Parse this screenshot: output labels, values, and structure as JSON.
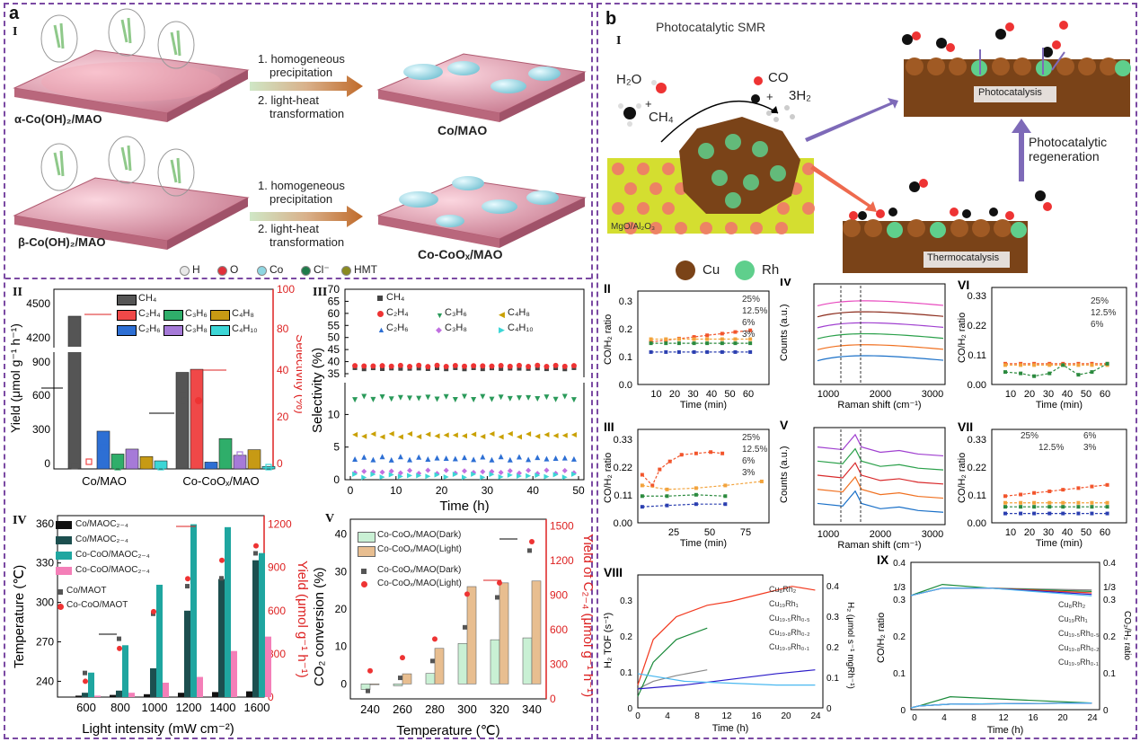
{
  "panel_a": {
    "letter": "a",
    "sub_I": "I",
    "arrow_steps": [
      "1. homogeneous",
      "precipitation",
      "2. light-heat",
      "transformation"
    ],
    "labels": {
      "alpha": "α-Co(OH)₂/MAO",
      "beta": "β-Co(OH)₂/MAO",
      "co_mao": "Co/MAO",
      "co_coox": "Co-CoOₓ/MAO"
    },
    "legend": [
      {
        "label": "H",
        "color": "#e8e8e8"
      },
      {
        "label": "O",
        "color": "#e0303a"
      },
      {
        "label": "Co",
        "color": "#8fd6e2"
      },
      {
        "label": "Cl⁻",
        "color": "#1f7a4a"
      },
      {
        "label": "HMT",
        "color": "#8a8a20"
      }
    ]
  },
  "panel_b": {
    "letter": "b",
    "sub_I": "I",
    "title": "Photocatalytic SMR",
    "reaction": {
      "h2o": "H₂O",
      "ch4": "CH₄",
      "co": "CO",
      "h2": "3H₂",
      "plus": "+"
    },
    "support": "MgO/Al₂O₃",
    "photocatalysis": "Photocatalysis",
    "thermocatalysis": "Thermocatalysis",
    "regeneration": [
      "Photocatalytic",
      "regeneration"
    ],
    "legend": [
      {
        "label": "Cu",
        "color": "#7a4318"
      },
      {
        "label": "Rh",
        "color": "#5fcf8c"
      }
    ]
  },
  "chart_data": [
    {
      "id": "a-II",
      "type": "bar",
      "label": "II",
      "categories": [
        "Co/MAO",
        "Co-CoOx/MAO"
      ],
      "series": [
        {
          "name": "CH₄",
          "color": "#555555",
          "values": [
            4410,
            780
          ]
        },
        {
          "name": "C₂H₄",
          "color": "#f04848",
          "values": [
            null,
            805
          ]
        },
        {
          "name": "C₂H₆",
          "color": "#2d6fd4",
          "values": [
            305,
            55
          ]
        },
        {
          "name": "C₃H₆",
          "color": "#2fae6a",
          "values": [
            120,
            245
          ]
        },
        {
          "name": "C₃H₈",
          "color": "#a67ad8",
          "values": [
            160,
            110
          ]
        },
        {
          "name": "C₄H₈",
          "color": "#c79a14",
          "values": [
            100,
            155
          ]
        },
        {
          "name": "C₄H₁₀",
          "color": "#3cd6d6",
          "values": [
            65,
            20
          ]
        }
      ],
      "ylabel": "Yield (μmol g⁻¹ h⁻¹)",
      "y2label": "Selectivity (%)",
      "yticks": [
        "0",
        "300",
        "600",
        "900",
        "4200",
        "4500"
      ],
      "y2ticks": [
        "0",
        "20",
        "40",
        "80",
        "100"
      ]
    },
    {
      "id": "a-III",
      "type": "scatter",
      "label": "III",
      "xlabel": "Time (h)",
      "ylabel": "Selectivity (%)",
      "xticks": [
        "0",
        "10",
        "20",
        "30",
        "40",
        "50"
      ],
      "yticks": [
        "0",
        "5",
        "10",
        "35",
        "40",
        "45",
        "50",
        "55",
        "60",
        "65",
        "70"
      ],
      "xlim": [
        0,
        50
      ],
      "series": [
        {
          "name": "CH₄",
          "value": 37.2
        },
        {
          "name": "C₂H₄",
          "value": 38.2
        },
        {
          "name": "C₂H₆",
          "value": 3.3
        },
        {
          "name": "C₃H₆",
          "value": 12.5
        },
        {
          "name": "C₃H₈",
          "value": 1.2
        },
        {
          "name": "C₄H₈",
          "value": 6.8
        },
        {
          "name": "C₄H₁₀",
          "value": 0.6
        }
      ]
    },
    {
      "id": "a-IV",
      "type": "bar",
      "label": "IV",
      "xlabel": "Light intensity (mW cm⁻²)",
      "ylabel": "Temperature (℃)",
      "y2label": "Yield (μmol g⁻¹ h⁻¹)",
      "categories": [
        "600",
        "800",
        "1000",
        "1200",
        "1400",
        "1600"
      ],
      "yticks": [
        "240",
        "270",
        "300",
        "330",
        "360"
      ],
      "y2ticks": [
        "0",
        "300",
        "600",
        "900",
        "1200"
      ],
      "series": [
        {
          "name": "Co/MAOC₂₋₄",
          "values": [
            10,
            15,
            20,
            30,
            35,
            40
          ]
        },
        {
          "name": "Co/MAOC₂₋₄",
          "values": [
            30,
            45,
            200,
            600,
            820,
            950
          ]
        },
        {
          "name": "Co-CoO/MAOC₂₋₄",
          "values": [
            170,
            360,
            780,
            1200,
            1180,
            1000
          ]
        },
        {
          "name": "Co-CoO/MAOC₂₋₄",
          "values": [
            10,
            30,
            100,
            140,
            320,
            420
          ]
        }
      ],
      "temps": {
        "Co/MAO_T": [
          246,
          272,
          291,
          312,
          318,
          337
        ],
        "Co-CoO/MAO_T": [
          240,
          265,
          293,
          318,
          332,
          343
        ]
      }
    },
    {
      "id": "a-V",
      "type": "bar",
      "label": "V",
      "xlabel": "Temperature (℃)",
      "ylabel": "CO₂ conversion (%)",
      "y2label": "Yield of C₂₋₄ (μmol g⁻¹ h⁻¹)",
      "categories": [
        "240",
        "260",
        "280",
        "300",
        "320",
        "340"
      ],
      "yticks": [
        "0",
        "10",
        "20",
        "30",
        "40"
      ],
      "y2ticks": [
        "0",
        "300",
        "600",
        "900",
        "1200",
        "1500"
      ],
      "series": [
        {
          "name": "Co-CoOₓ/MAO(Dark)",
          "values": [
            -1.5,
            -0.5,
            2.8,
            10.8,
            11.8,
            12.3
          ]
        },
        {
          "name": "Co-CoOₓ/MAO(Light)",
          "values": [
            -0.2,
            2.7,
            9.5,
            26,
            27,
            27.5
          ]
        }
      ]
    },
    {
      "id": "b-II",
      "type": "line",
      "label": "II",
      "xlabel": "Time (min)",
      "ylabel": "CO/H₂ ratio",
      "legend": [
        "25%",
        "12.5%",
        "6%",
        "3%"
      ]
    },
    {
      "id": "b-III",
      "type": "line",
      "label": "III",
      "xlabel": "Time (min)",
      "ylabel": "CO/H₂ ratio",
      "legend": [
        "25%",
        "12.5%",
        "6%",
        "3%"
      ]
    },
    {
      "id": "b-IV",
      "type": "line",
      "label": "IV",
      "xlabel": "Raman shift (cm⁻¹)",
      "ylabel": "Counts (a.u.)"
    },
    {
      "id": "b-V",
      "type": "line",
      "label": "V",
      "xlabel": "Raman shift (cm⁻¹)",
      "ylabel": "Counts (a.u.)"
    },
    {
      "id": "b-VI",
      "type": "line",
      "label": "VI",
      "xlabel": "Time (min)",
      "ylabel": "CO/H₂ ratio",
      "legend": [
        "25%",
        "12.5%",
        "6%"
      ]
    },
    {
      "id": "b-VII",
      "type": "line",
      "label": "VII",
      "xlabel": "Time (min)",
      "ylabel": "CO/H₂ ratio",
      "legend": [
        "25%",
        "12.5%",
        "6%",
        "3%"
      ]
    },
    {
      "id": "b-VIII",
      "type": "line",
      "label": "VIII",
      "xlabel": "Time (h)",
      "ylabel": "H₂ TOF (s⁻¹)",
      "y2label": "H₂ (μmol s⁻¹ mgRh⁻¹)",
      "legend": [
        "Cu₈Rh₂",
        "Cu₁₉Rh₁",
        "Cu₁₉.₅Rh₀.₅",
        "Cu₁₉.₈Rh₀.₂",
        "Cu₁₉.₉Rh₀.₁"
      ]
    },
    {
      "id": "b-IX",
      "type": "line",
      "label": "IX",
      "xlabel": "Time (h)",
      "ylabel": "CO/H₂ ratio",
      "y2label": "CO₂/H₂ ratio",
      "legend": [
        "Cu₈Rh₂",
        "Cu₁₉Rh₁",
        "Cu₁₉.₅Rh₀.₅",
        "Cu₁₉.₈Rh₀.₂",
        "Cu₁₉.₉Rh₀.₁"
      ]
    }
  ],
  "shared_ticks": {
    "time_min": [
      "10",
      "20",
      "30",
      "40",
      "50",
      "60"
    ],
    "time_min_III": [
      "25",
      "50",
      "75"
    ],
    "co_h2_II": [
      "0.0",
      "0.1",
      "0.2",
      "0.3"
    ],
    "co_h2_III": [
      "0.00",
      "0.11",
      "0.22",
      "0.33"
    ],
    "raman": [
      "1000",
      "2000",
      "3000"
    ],
    "time_h": [
      "0",
      "4",
      "8",
      "12",
      "16",
      "20",
      "24"
    ],
    "viii_y": [
      "0",
      "0.1",
      "0.2",
      "0.3"
    ],
    "viii_y2": [
      "0",
      "0.1",
      "0.2",
      "0.3",
      "0.4"
    ],
    "ix_y": [
      "0",
      "0.1",
      "0.2",
      "0.3",
      "1/3",
      "0.4"
    ]
  },
  "a_legends": {
    "II": [
      "CH₄",
      "C₂H₄",
      "C₃H₆",
      "C₄H₈",
      "C₂H₆",
      "C₃H₈",
      "C₄H₁₀"
    ],
    "III": [
      "CH₄",
      "C₂H₄",
      "C₃H₆",
      "C₄H₈",
      "C₂H₆",
      "C₃H₈",
      "C₄H₁₀"
    ],
    "IV_bars": [
      "Co/MAOC₂₋₄",
      "Co/MAOC₂₋₄",
      "Co-CoO/MAOC₂₋₄",
      "Co-CoO/MAOC₂₋₄"
    ],
    "IV_points": [
      "Co/MAOT",
      "Co-CoO/MAOT"
    ],
    "V_bars": [
      "Co-CoOₓ/MAO(Dark)",
      "Co-CoOₓ/MAO(Light)"
    ],
    "V_points": [
      "Co-CoOₓ/MAO(Dark)",
      "Co-CoOₓ/MAO(Light)"
    ]
  }
}
